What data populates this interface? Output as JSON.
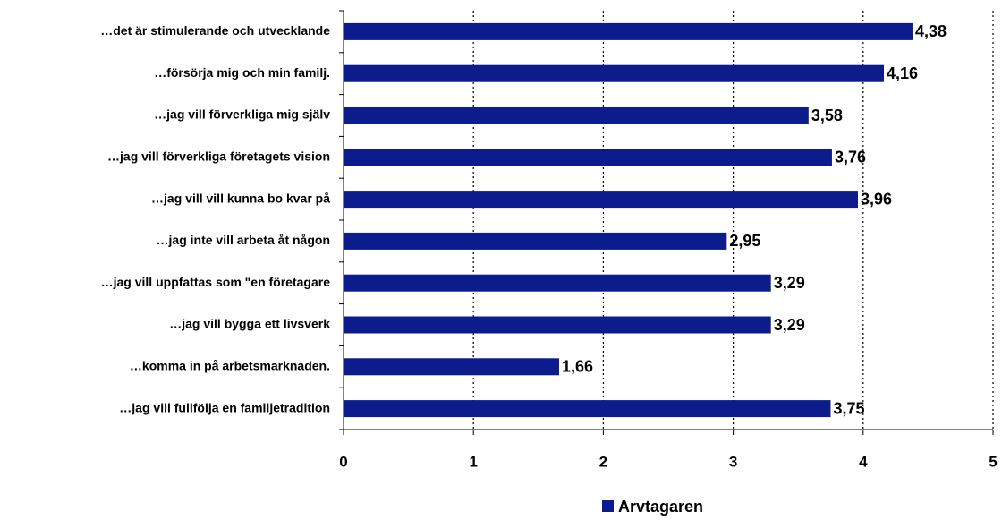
{
  "chart_data": {
    "type": "bar",
    "orientation": "horizontal",
    "categories": [
      "…det är stimulerande och utvecklande",
      "…försörja mig och min familj.",
      "…jag vill förverkliga mig själv",
      "…jag vill förverkliga företagets vision",
      "…jag vill vill kunna bo kvar på",
      "…jag inte vill arbeta åt någon",
      "…jag vill uppfattas som \"en företagare",
      "…jag vill bygga ett livsverk",
      "…komma in på arbetsmarknaden.",
      "…jag vill fullfölja en familjetradition"
    ],
    "series": [
      {
        "name": "Arvtagaren",
        "color": "#0c1c8c",
        "values": [
          4.38,
          4.16,
          3.58,
          3.76,
          3.96,
          2.95,
          3.29,
          3.29,
          1.66,
          3.75
        ],
        "value_labels": [
          "4,38",
          "4,16",
          "3,58",
          "3,76",
          "3,96",
          "2,95",
          "3,29",
          "3,29",
          "1,66",
          "3,75"
        ]
      }
    ],
    "xlim": [
      0,
      5
    ],
    "xticks": [
      0,
      1,
      2,
      3,
      4,
      5
    ],
    "grid": true,
    "legend": "bottom"
  }
}
